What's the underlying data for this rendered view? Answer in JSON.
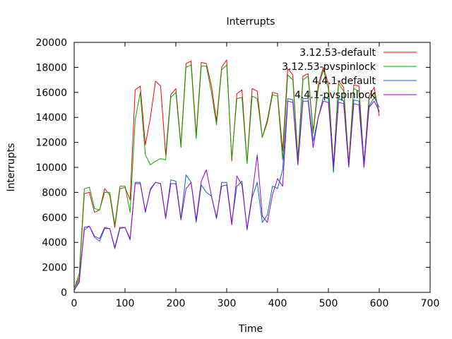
{
  "chart_data": {
    "type": "line",
    "title": "Interrupts",
    "xlabel": "Time",
    "ylabel": "Interrupts",
    "xlim": [
      0,
      700
    ],
    "ylim": [
      0,
      20000
    ],
    "xticks": [
      "0",
      "100",
      "200",
      "300",
      "400",
      "500",
      "600",
      "700"
    ],
    "yticks": [
      "0",
      "2000",
      "4000",
      "6000",
      "8000",
      "10000",
      "12000",
      "14000",
      "16000",
      "18000",
      "20000"
    ],
    "grid": false,
    "legend_position": "top-right",
    "x": [
      0,
      10,
      20,
      30,
      40,
      50,
      60,
      70,
      80,
      90,
      100,
      110,
      120,
      130,
      140,
      150,
      160,
      170,
      180,
      190,
      200,
      210,
      220,
      230,
      240,
      250,
      260,
      270,
      280,
      290,
      300,
      310,
      320,
      330,
      340,
      350,
      360,
      370,
      380,
      390,
      400,
      410,
      420,
      430,
      440,
      450,
      460,
      470,
      480,
      490,
      500,
      510,
      520,
      530,
      540,
      550,
      560,
      570,
      580,
      590,
      600
    ],
    "series": [
      {
        "name": "3.12.53-default",
        "color": "#ff0000",
        "values": [
          300,
          1200,
          7900,
          8000,
          6400,
          6600,
          8300,
          7800,
          5200,
          8300,
          8400,
          7400,
          16200,
          16500,
          11800,
          14000,
          16900,
          16500,
          11000,
          15800,
          16300,
          11800,
          18300,
          18500,
          12600,
          18400,
          18300,
          16500,
          13700,
          18000,
          18600,
          10500,
          15900,
          16200,
          10400,
          16300,
          16100,
          12400,
          13800,
          16000,
          15900,
          11300,
          17900,
          17400,
          10700,
          17300,
          17500,
          12900,
          16600,
          18000,
          16700,
          10100,
          16900,
          16400,
          10300,
          16600,
          16500,
          10300,
          15700,
          16400,
          14100
        ]
      },
      {
        "name": "3.12.53-pvspinlock",
        "color": "#00aa00",
        "values": [
          300,
          1500,
          8300,
          8400,
          6700,
          6600,
          8000,
          8000,
          5400,
          8500,
          8500,
          6400,
          13800,
          16000,
          11000,
          10200,
          10500,
          10700,
          10600,
          15600,
          16000,
          11600,
          18000,
          18200,
          12300,
          18100,
          18100,
          16000,
          13400,
          17800,
          18200,
          10700,
          15500,
          15600,
          10300,
          15700,
          15500,
          12400,
          13600,
          15800,
          15700,
          10600,
          17400,
          17000,
          10600,
          17000,
          17300,
          12700,
          16300,
          17800,
          16300,
          10100,
          16700,
          16100,
          10300,
          16300,
          16100,
          10100,
          15400,
          16000,
          14400
        ]
      },
      {
        "name": "4.4.1-default",
        "color": "#0066cc",
        "values": [
          100,
          1000,
          5000,
          5300,
          4400,
          4100,
          5100,
          5100,
          3500,
          5100,
          5200,
          4200,
          8800,
          8800,
          6400,
          8300,
          8800,
          8700,
          6000,
          9000,
          8900,
          5900,
          9400,
          8800,
          5600,
          8600,
          8000,
          7700,
          5900,
          8800,
          8800,
          5600,
          8500,
          8900,
          5000,
          7600,
          8800,
          5600,
          6200,
          8500,
          8300,
          9800,
          15500,
          15400,
          10300,
          15500,
          15500,
          12100,
          14000,
          15600,
          15500,
          9600,
          15500,
          15300,
          10000,
          15400,
          15300,
          10400,
          14900,
          15600,
          14800
        ]
      },
      {
        "name": "4.4.1-pvspinlock",
        "color": "#9900cc",
        "values": [
          200,
          800,
          5200,
          5300,
          4500,
          4300,
          5200,
          5100,
          3600,
          5200,
          5200,
          4300,
          8700,
          8700,
          6500,
          8200,
          8800,
          8700,
          5900,
          8700,
          8700,
          5800,
          8300,
          8800,
          5800,
          8900,
          9800,
          7700,
          6000,
          8500,
          8600,
          5400,
          9300,
          8600,
          5100,
          7800,
          11000,
          6100,
          5600,
          7800,
          9100,
          8500,
          15300,
          15200,
          10200,
          15300,
          15300,
          11600,
          14000,
          15300,
          15200,
          10200,
          15200,
          15100,
          10100,
          15100,
          15000,
          10000,
          14800,
          15300,
          14500
        ]
      }
    ]
  }
}
